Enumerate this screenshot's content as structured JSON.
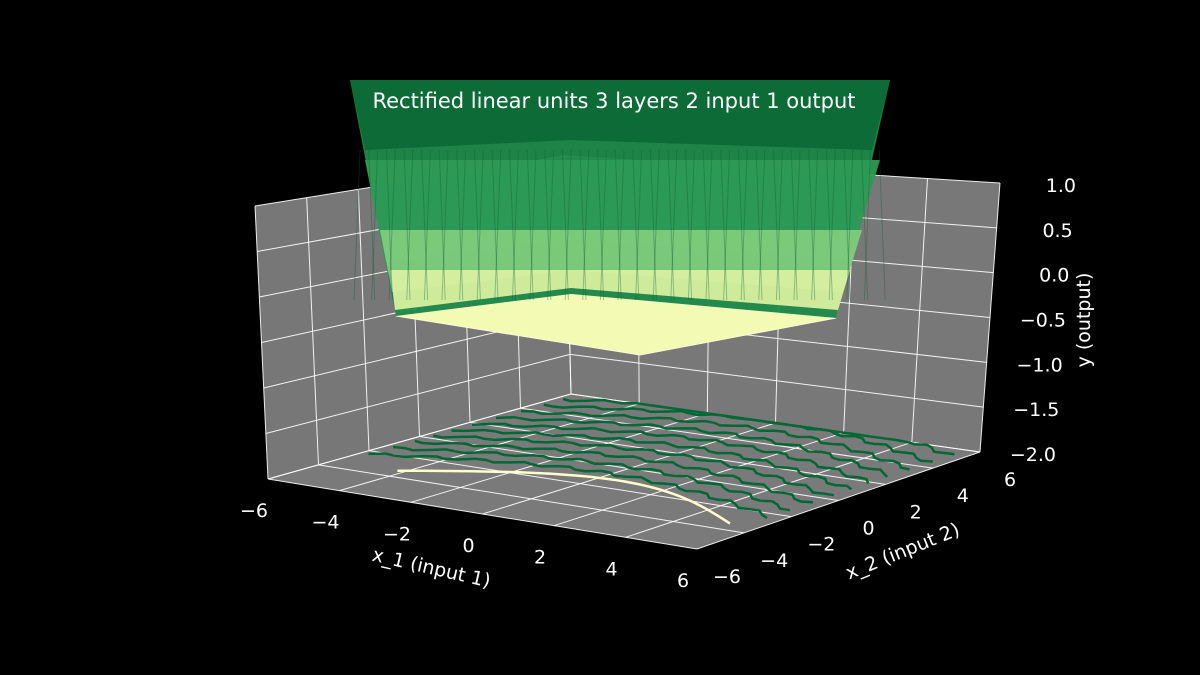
{
  "chart_data": {
    "type": "surface3d",
    "title": "Rectified linear units 3 layers 2 input 1 output",
    "xlabel": "x_1 (input 1)",
    "ylabel": "x_2 (input 2)",
    "zlabel": "y (output)",
    "x_ticks": [
      "−6",
      "−4",
      "−2",
      "0",
      "2",
      "4",
      "6"
    ],
    "y_ticks": [
      "−6",
      "−4",
      "−2",
      "0",
      "2",
      "4",
      "6"
    ],
    "z_ticks": [
      "−2.0",
      "−1.5",
      "−1.0",
      "−0.5",
      "0.0",
      "0.5",
      "1.0"
    ],
    "xlim": [
      -6,
      6
    ],
    "ylim": [
      -6,
      6
    ],
    "zlim": [
      -2.0,
      1.0
    ],
    "grid": true,
    "colormap": "YlGn",
    "colors": {
      "background": "#000000",
      "pane": "#777777",
      "grid": "#ffffff",
      "surface_low": "#ffffcc",
      "surface_mid": "#78c679",
      "surface_high": "#006837"
    },
    "surface": {
      "floor_value": -0.3,
      "description_values": "output is flat at about -0.3 for the inner region and rises steeply (ReLU) beyond the plotted z-limit toward the edges"
    }
  }
}
